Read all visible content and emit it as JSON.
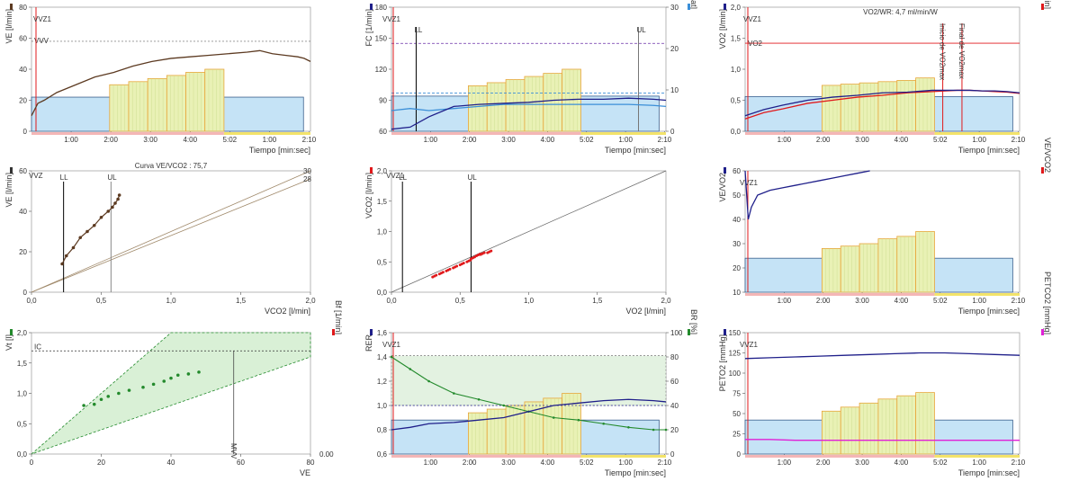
{
  "colors": {
    "bg_blue": "#c5e3f6",
    "yellow_fill": "#e9f1b5",
    "box_orange": "#e8a63a",
    "brown": "#5c3a21",
    "navy": "#1f1f8a",
    "light_blue": "#3b8fd8",
    "red": "#e0191b",
    "green": "#238a2c",
    "magenta": "#e020d6",
    "grid": "#dddddd"
  },
  "chart_data": [
    {
      "id": "p1",
      "type": "line",
      "xlabel": "Tiempo [min:sec]",
      "ylabel_left": "VE [l/min]",
      "xticks": [
        "1:00",
        "2:00",
        "3:00",
        "4:00",
        "5:02",
        "1:00",
        "2:10"
      ],
      "xlim": [
        0,
        440
      ],
      "ylim": [
        0,
        80
      ],
      "yticks": [
        0,
        20,
        40,
        60,
        80
      ],
      "annotations": {
        "vvz1": "VVZ1",
        "vvv": "VVV"
      },
      "vvv_level": 58,
      "base_box": 22,
      "steps": [
        30,
        32,
        34,
        36,
        38,
        40
      ],
      "series": [
        {
          "x": [
            0,
            10,
            20,
            40,
            70,
            100,
            130,
            160,
            190,
            220,
            250,
            280,
            310,
            340,
            360,
            380,
            400,
            420,
            430,
            440
          ],
          "y": [
            10,
            18,
            20,
            25,
            30,
            35,
            38,
            42,
            45,
            47,
            48,
            49,
            50,
            51,
            52,
            50,
            49,
            48,
            47,
            45
          ]
        }
      ]
    },
    {
      "id": "p2",
      "type": "line",
      "xlabel": "Tiempo [min:sec]",
      "ylabel_left": "FC [1/min]",
      "ylabel_right": "O2Pulso [ml/beat]",
      "xticks": [
        "1:00",
        "2:00",
        "3:00",
        "4:00",
        "5:02",
        "1:00",
        "2:10"
      ],
      "xlim": [
        0,
        440
      ],
      "ylim": [
        60,
        180
      ],
      "yticks": [
        60,
        90,
        120,
        150,
        180
      ],
      "y2lim": [
        0,
        30
      ],
      "y2ticks": [
        0,
        10,
        20,
        30
      ],
      "annotations": {
        "vvz1": "VVZ1",
        "ll": "LL",
        "ul": "UL"
      },
      "base_box": 94,
      "steps": [
        104,
        107,
        110,
        113,
        116,
        120
      ],
      "dash_level_1": 145,
      "dash_level_2": 97,
      "series": [
        {
          "name": "FC",
          "x": [
            0,
            30,
            60,
            100,
            140,
            180,
            220,
            260,
            300,
            340,
            380,
            420,
            440
          ],
          "y": [
            62,
            64,
            74,
            84,
            86,
            87,
            88,
            90,
            91,
            91,
            92,
            91,
            90
          ]
        },
        {
          "name": "O2Pulso",
          "x": [
            0,
            30,
            60,
            100,
            140,
            180,
            220,
            260,
            300,
            340,
            380,
            420,
            440
          ],
          "y": [
            80,
            82,
            80,
            82,
            84,
            86,
            86,
            86,
            86,
            86,
            86,
            85,
            84
          ]
        }
      ]
    },
    {
      "id": "p3",
      "type": "line",
      "title": "VO2/WR: 4,7 ml/min/W",
      "xlabel": "Tiempo [min:sec]",
      "ylabel_left": "VO2 [l/min]",
      "ylabel_right": "VCO2 [l/min]",
      "xticks": [
        "1:00",
        "2:00",
        "3:00",
        "4:00",
        "5:02",
        "1:00",
        "2:10"
      ],
      "xlim": [
        0,
        440
      ],
      "ylim": [
        0,
        2
      ],
      "yticks": [
        "0,0",
        "0,5",
        "1,0",
        "1,5",
        "2,0"
      ],
      "annotations": {
        "vvz1": "VVZ1",
        "vo2": "VO2",
        "inicio": "Inicio de VO2max",
        "final": "Final de VO2max"
      },
      "max_level": 1.42,
      "base_box": 0.56,
      "steps": [
        0.74,
        0.76,
        0.78,
        0.8,
        0.82,
        0.86
      ],
      "series": [
        {
          "name": "VO2",
          "x": [
            0,
            30,
            60,
            100,
            140,
            180,
            220,
            260,
            300,
            340,
            360,
            380,
            400,
            420,
            440
          ],
          "y": [
            0.25,
            0.35,
            0.42,
            0.5,
            0.55,
            0.58,
            0.62,
            0.63,
            0.66,
            0.66,
            0.66,
            0.65,
            0.65,
            0.64,
            0.62
          ]
        },
        {
          "name": "VCO2",
          "x": [
            0,
            30,
            60,
            100,
            140,
            180,
            220,
            260,
            300,
            340,
            360,
            380,
            400,
            420,
            440
          ],
          "y": [
            0.2,
            0.3,
            0.36,
            0.45,
            0.5,
            0.55,
            0.58,
            0.62,
            0.64,
            0.66,
            0.66,
            0.65,
            0.64,
            0.63,
            0.61
          ]
        }
      ]
    },
    {
      "id": "p4",
      "type": "scatter",
      "title": "Curva VE/VCO2 : 75,7",
      "xlabel": "VCO2 [l/min]",
      "ylabel_left": "VE [l/min]",
      "xticks": [
        "0,0",
        "0,5",
        "1,0",
        "1,5",
        "2,0"
      ],
      "xlim": [
        0,
        2
      ],
      "ylim": [
        0,
        60
      ],
      "yticks": [
        0,
        20,
        40,
        60
      ],
      "annotations": {
        "vvz1": "VVZ",
        "ll": "LL",
        "ul": "UL",
        "r30": "30",
        "r28": "28"
      },
      "ll_x": 0.23,
      "ul_x": 0.57,
      "points": {
        "x": [
          0.22,
          0.25,
          0.3,
          0.35,
          0.4,
          0.45,
          0.5,
          0.55,
          0.58,
          0.6,
          0.62,
          0.63
        ],
        "y": [
          14,
          18,
          22,
          27,
          30,
          33,
          37,
          40,
          42,
          44,
          46,
          48
        ]
      }
    },
    {
      "id": "p5",
      "type": "scatter",
      "xlabel": "VO2 [l/min]",
      "ylabel_left": "VCO2 [l/min]",
      "xticks": [
        "0,0",
        "0,5",
        "1,0",
        "1,5",
        "2,0"
      ],
      "xlim": [
        0,
        2
      ],
      "ylim": [
        0,
        2
      ],
      "yticks": [
        "0,0",
        "0,5",
        "1,0",
        "1,5",
        "2,0"
      ],
      "annotations": {
        "vvz1": "VVZ1",
        "ll": "LL",
        "ul": "UL"
      },
      "ll_x": 0.08,
      "ul_x": 0.58,
      "points": {
        "x": [
          0.3,
          0.35,
          0.4,
          0.45,
          0.5,
          0.55,
          0.58,
          0.62,
          0.65,
          0.7
        ],
        "y": [
          0.25,
          0.3,
          0.35,
          0.4,
          0.45,
          0.5,
          0.55,
          0.6,
          0.62,
          0.65
        ]
      }
    },
    {
      "id": "p6",
      "type": "line",
      "xlabel": "Tiempo [min:sec]",
      "ylabel_left": "VE/VO2",
      "ylabel_right": "VE/VCO2",
      "xticks": [
        "1:00",
        "2:00",
        "3:00",
        "4:00",
        "5:02",
        "1:00",
        "2:10"
      ],
      "xlim": [
        0,
        440
      ],
      "ylim": [
        10,
        60
      ],
      "yticks": [
        10,
        20,
        30,
        40,
        50,
        60
      ],
      "annotations": {
        "vvz1": "VVZ1"
      },
      "base_box": 24,
      "steps": [
        28,
        29,
        30,
        32,
        33,
        35
      ],
      "series": [
        {
          "name": "VE/VO2",
          "x": [
            0,
            5,
            10,
            20,
            40,
            60,
            80,
            100,
            120,
            140,
            160,
            180,
            200
          ],
          "y": [
            60,
            40,
            45,
            50,
            52,
            53,
            54,
            55,
            56,
            57,
            58,
            59,
            60
          ]
        }
      ]
    },
    {
      "id": "p7",
      "type": "scatter",
      "xlabel": "VE",
      "ylabel_left": "Vt [l]",
      "ylabel_right": "Bf [1/min]",
      "xticks": [
        0,
        20,
        40,
        60,
        80
      ],
      "xlim": [
        0,
        80
      ],
      "ylim": [
        0,
        2
      ],
      "yticks": [
        "0,0",
        "0,5",
        "1,0",
        "1,5",
        "2,0"
      ],
      "annotations": {
        "ic": "IC",
        "mvv": "MVV",
        "v0": "0.00"
      },
      "ic_level": 1.7,
      "mvv_x": 58,
      "points": {
        "x": [
          15,
          18,
          20,
          22,
          25,
          28,
          32,
          35,
          38,
          40,
          42,
          45,
          48
        ],
        "y": [
          0.8,
          0.82,
          0.9,
          0.95,
          1.0,
          1.05,
          1.1,
          1.15,
          1.2,
          1.25,
          1.3,
          1.32,
          1.35
        ]
      }
    },
    {
      "id": "p8",
      "type": "line",
      "xlabel": "Tiempo [min:sec]",
      "ylabel_left": "RER",
      "ylabel_right": "BR [%]",
      "xticks": [
        "1:00",
        "2:00",
        "3:00",
        "4:00",
        "5:02",
        "1:00",
        "2:10"
      ],
      "xlim": [
        0,
        440
      ],
      "ylim": [
        0.6,
        1.6
      ],
      "yticks": [
        "0,6",
        "0,8",
        "1,0",
        "1,2",
        "1,4",
        "1,6"
      ],
      "y2lim": [
        0,
        100
      ],
      "y2ticks": [
        0,
        20,
        40,
        60,
        80,
        100
      ],
      "annotations": {
        "vvz1": "VVZ1"
      },
      "base_box": 0.88,
      "steps": [
        0.94,
        0.97,
        1.0,
        1.03,
        1.06,
        1.1
      ],
      "dots_level": 1.41,
      "ref_level": 1.0,
      "series": [
        {
          "name": "RER",
          "x": [
            0,
            30,
            60,
            100,
            140,
            180,
            220,
            260,
            300,
            340,
            380,
            420,
            440
          ],
          "y": [
            0.8,
            0.82,
            0.85,
            0.86,
            0.88,
            0.9,
            0.95,
            1.0,
            1.02,
            1.04,
            1.05,
            1.04,
            1.03
          ]
        },
        {
          "name": "BR",
          "x": [
            0,
            30,
            60,
            100,
            140,
            180,
            220,
            260,
            300,
            340,
            380,
            420,
            440
          ],
          "y": [
            80,
            70,
            60,
            50,
            45,
            40,
            35,
            30,
            28,
            25,
            22,
            20,
            20
          ]
        }
      ]
    },
    {
      "id": "p9",
      "type": "line",
      "xlabel": "Tiempo [min:sec]",
      "ylabel_left": "PETO2 [mmHg]",
      "ylabel_right": "PETCO2 [mmHg]",
      "xticks": [
        "1:00",
        "2:00",
        "3:00",
        "4:00",
        "5:02",
        "1:00",
        "2:10"
      ],
      "xlim": [
        0,
        440
      ],
      "ylim": [
        0,
        150
      ],
      "yticks": [
        0,
        25,
        50,
        75,
        100,
        125,
        150
      ],
      "annotations": {
        "vvz1": "VVZ1"
      },
      "base_box": 42,
      "steps": [
        53,
        58,
        63,
        68,
        72,
        76
      ],
      "series": [
        {
          "name": "PETO2",
          "x": [
            0,
            40,
            80,
            120,
            160,
            200,
            240,
            280,
            320,
            360,
            400,
            440
          ],
          "y": [
            118,
            119,
            120,
            121,
            122,
            123,
            124,
            125,
            125,
            124,
            123,
            122
          ]
        },
        {
          "name": "PETCO2",
          "x": [
            0,
            40,
            80,
            120,
            160,
            200,
            240,
            280,
            320,
            360,
            400,
            440
          ],
          "y": [
            18,
            18,
            17,
            17,
            17,
            17,
            17,
            17,
            17,
            17,
            17,
            17
          ]
        }
      ]
    }
  ]
}
